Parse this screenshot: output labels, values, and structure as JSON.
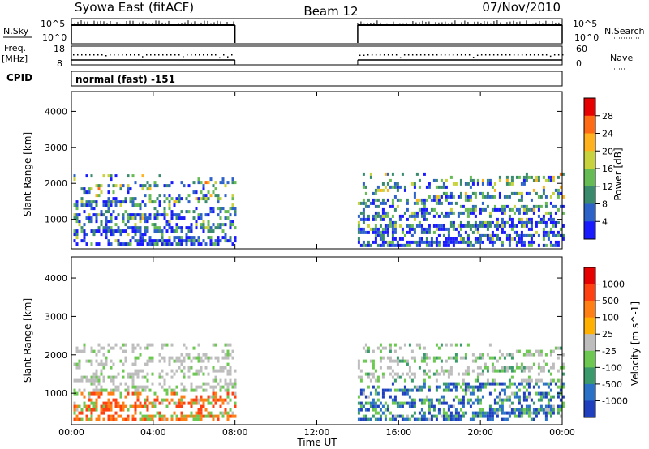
{
  "header": {
    "site": "Syowa East (fitACF)",
    "beam": "Beam 12",
    "date": "07/Nov/2010"
  },
  "top_panel": {
    "nsky_label": "N.Sky",
    "nsky_ticks": [
      "10^5",
      "10^0"
    ],
    "nsearch_label": "N.Search",
    "nsearch_ticks": [
      "10^5",
      "10^0"
    ],
    "freq_label_1": "Freq.",
    "freq_label_2": "[MHz]",
    "freq_ticks": [
      "18",
      "8"
    ],
    "nave_label": "Nave",
    "nave_ticks": [
      "60",
      "0"
    ],
    "cpid_label": "CPID",
    "cpid_value": "normal (fast) -151"
  },
  "chart_data": [
    {
      "type": "heatmap",
      "title": "",
      "xlabel": "Time UT",
      "ylabel": "Slant Range [km]",
      "x_ticks": [
        "00:00",
        "04:00",
        "08:00",
        "12:00",
        "16:00",
        "20:00",
        "00:00"
      ],
      "y_ticks": [
        "1000",
        "2000",
        "3000",
        "4000"
      ],
      "xlim_hours": [
        0,
        24
      ],
      "ylim_km": [
        180,
        4550
      ],
      "colorbar_label": "Power [dB]",
      "colorbar_ticks": [
        "4",
        "8",
        "12",
        "16",
        "20",
        "24",
        "28"
      ],
      "colors": [
        "#1a1aff",
        "#2d62c8",
        "#3a8a6e",
        "#66bb55",
        "#c8d23c",
        "#ffb21e",
        "#ff6a14",
        "#e60000"
      ],
      "data_gaps_hours": [
        [
          8,
          14
        ]
      ],
      "observation_intervals_hours": [
        [
          0,
          8
        ],
        [
          14,
          24
        ]
      ],
      "echo_regions": [
        {
          "t": [
            0.1,
            8.0
          ],
          "range_km": [
            300,
            2250
          ],
          "level": "4-28 dB"
        },
        {
          "t": [
            14.0,
            24.0
          ],
          "range_km": [
            300,
            2300
          ],
          "level": "4-28 dB"
        }
      ]
    },
    {
      "type": "heatmap",
      "title": "",
      "xlabel": "Time UT",
      "ylabel": "Slant Range [km]",
      "x_ticks": [
        "00:00",
        "04:00",
        "08:00",
        "12:00",
        "16:00",
        "20:00",
        "00:00"
      ],
      "y_ticks": [
        "1000",
        "2000",
        "3000",
        "4000"
      ],
      "xlim_hours": [
        0,
        24
      ],
      "ylim_km": [
        180,
        4550
      ],
      "colorbar_label": "Velocity [m s^-1]",
      "colorbar_ticks": [
        "1000",
        "500",
        "100",
        "25",
        "-25",
        "-100",
        "-500",
        "-1000"
      ],
      "colors": [
        "#1f3fbf",
        "#2a72c8",
        "#3b9a6c",
        "#6cc850",
        "#bdbdbd",
        "#ffb000",
        "#ff7f14",
        "#ff4010",
        "#e60000"
      ],
      "data_gaps_hours": [
        [
          8,
          14
        ]
      ],
      "observation_intervals_hours": [
        [
          0,
          8
        ],
        [
          14,
          24
        ]
      ],
      "echo_regions": [
        {
          "t": [
            0.1,
            8.0
          ],
          "range_km": [
            300,
            2300
          ],
          "level": "-1000 to 1000 m/s"
        },
        {
          "t": [
            14.0,
            24.0
          ],
          "range_km": [
            300,
            2300
          ],
          "level": "-1000 to 1000 m/s"
        }
      ]
    }
  ]
}
